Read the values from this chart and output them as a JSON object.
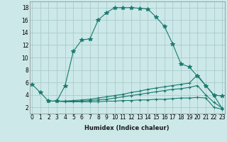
{
  "xlabel": "Humidex (Indice chaleur)",
  "bg_color": "#cce8e8",
  "line_color": "#1a7a6e",
  "grid_color": "#aacccc",
  "series": [
    {
      "x": [
        0,
        1,
        2,
        3,
        4,
        5,
        6,
        7,
        8,
        9,
        10,
        11,
        12,
        13,
        14,
        15,
        16,
        17,
        18,
        19,
        20,
        21,
        22,
        23
      ],
      "y": [
        5.7,
        4.4,
        3.0,
        3.0,
        5.5,
        11.0,
        12.8,
        13.0,
        16.0,
        17.2,
        18.0,
        18.0,
        18.0,
        17.9,
        17.8,
        16.5,
        15.0,
        12.2,
        9.0,
        8.5,
        7.0,
        5.5,
        4.0,
        3.8
      ],
      "marker": "*",
      "ms": 4
    },
    {
      "x": [
        2,
        3,
        4,
        5,
        6,
        7,
        8,
        9,
        10,
        11,
        12,
        13,
        14,
        15,
        16,
        17,
        18,
        19,
        20,
        21,
        22,
        23
      ],
      "y": [
        3.0,
        3.0,
        3.0,
        3.1,
        3.2,
        3.3,
        3.5,
        3.7,
        3.9,
        4.1,
        4.4,
        4.6,
        4.9,
        5.1,
        5.3,
        5.5,
        5.7,
        5.9,
        7.2,
        5.5,
        3.9,
        1.8
      ],
      "marker": "+",
      "ms": 3
    },
    {
      "x": [
        2,
        3,
        4,
        5,
        6,
        7,
        8,
        9,
        10,
        11,
        12,
        13,
        14,
        15,
        16,
        17,
        18,
        19,
        20,
        21,
        22,
        23
      ],
      "y": [
        3.0,
        3.0,
        3.0,
        3.0,
        3.0,
        3.1,
        3.2,
        3.3,
        3.5,
        3.7,
        3.9,
        4.1,
        4.3,
        4.5,
        4.7,
        4.9,
        5.0,
        5.2,
        5.5,
        4.0,
        2.8,
        1.9
      ],
      "marker": "+",
      "ms": 3
    },
    {
      "x": [
        2,
        3,
        4,
        5,
        6,
        7,
        8,
        9,
        10,
        11,
        12,
        13,
        14,
        15,
        16,
        17,
        18,
        19,
        20,
        21,
        22,
        23
      ],
      "y": [
        3.0,
        3.0,
        2.9,
        2.9,
        2.9,
        2.9,
        2.9,
        3.0,
        3.0,
        3.1,
        3.1,
        3.2,
        3.2,
        3.3,
        3.3,
        3.4,
        3.5,
        3.5,
        3.6,
        3.5,
        2.0,
        1.7
      ],
      "marker": "+",
      "ms": 3
    }
  ],
  "xlim": [
    0,
    23
  ],
  "ylim": [
    1,
    19
  ],
  "yticks": [
    2,
    4,
    6,
    8,
    10,
    12,
    14,
    16,
    18
  ],
  "xticks": [
    0,
    1,
    2,
    3,
    4,
    5,
    6,
    7,
    8,
    9,
    10,
    11,
    12,
    13,
    14,
    15,
    16,
    17,
    18,
    19,
    20,
    21,
    22,
    23
  ],
  "xlabel_fontsize": 6.0,
  "tick_fontsize": 5.5
}
